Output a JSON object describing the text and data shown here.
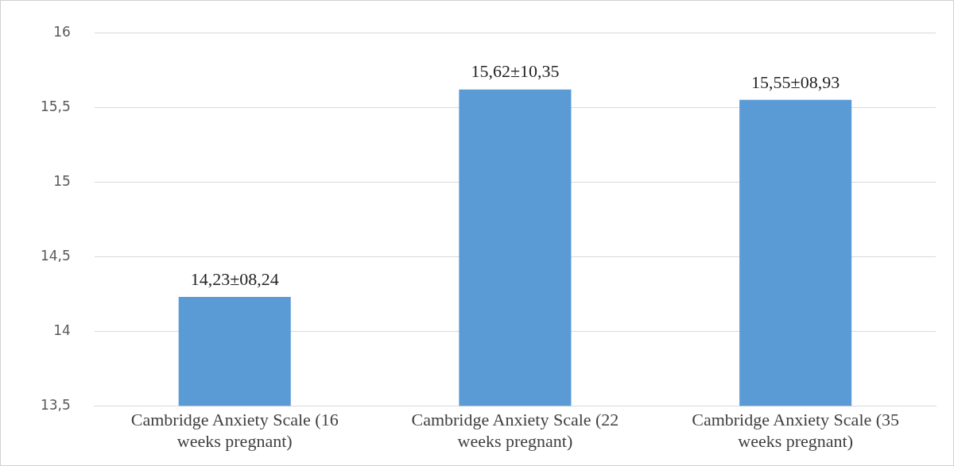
{
  "chart_data": {
    "type": "bar",
    "categories": [
      "Cambridge Anxiety Scale (16 weeks pregnant)",
      "Cambridge Anxiety Scale (22 weeks pregnant)",
      "Cambridge Anxiety Scale (35 weeks pregnant)"
    ],
    "values": [
      14.23,
      15.62,
      15.55
    ],
    "value_labels": [
      "14,23±08,24",
      "15,62±10,35",
      "15,55±08,93"
    ],
    "color": "#5b9bd5",
    "ylim": [
      13.5,
      16
    ],
    "yticks": [
      {
        "value": 13.5,
        "label": "13,5"
      },
      {
        "value": 14,
        "label": "14"
      },
      {
        "value": 14.5,
        "label": "14,5"
      },
      {
        "value": 15,
        "label": "15"
      },
      {
        "value": 15.5,
        "label": "15,5"
      },
      {
        "value": 16,
        "label": "16"
      }
    ],
    "grid": "y"
  }
}
